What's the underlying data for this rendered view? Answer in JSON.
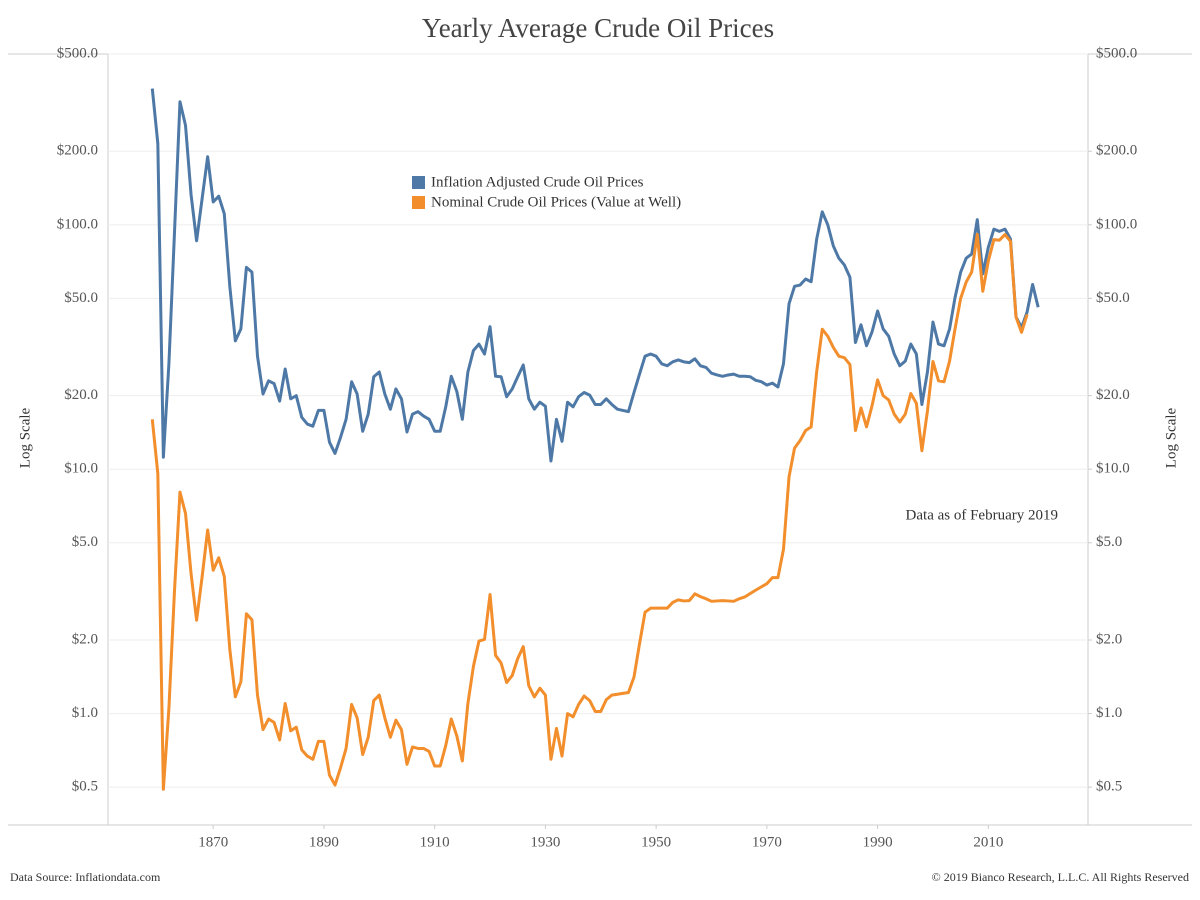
{
  "chart_data": {
    "type": "line",
    "title": "Yearly Average Crude Oil Prices",
    "y_label": "Log Scale",
    "y2_label": "Log Scale",
    "annotation": "Data as of February 2019",
    "source": "Data Source: Inflationdata.com",
    "copyright": "© 2019 Bianco Research, L.L.C. All Rights Reserved",
    "log_scale": true,
    "grid": true,
    "legend_position": "top",
    "xlim": [
      1851,
      2028
    ],
    "xticks": [
      1870,
      1890,
      1910,
      1930,
      1950,
      1970,
      1990,
      2010
    ],
    "ylim": [
      0.35,
      500
    ],
    "yticks": [
      {
        "value": 500,
        "label": "$500.0"
      },
      {
        "value": 200,
        "label": "$200.0"
      },
      {
        "value": 100,
        "label": "$100.0"
      },
      {
        "value": 50,
        "label": "$50.0"
      },
      {
        "value": 20,
        "label": "$20.0"
      },
      {
        "value": 10,
        "label": "$10.0"
      },
      {
        "value": 5,
        "label": "$5.0"
      },
      {
        "value": 2,
        "label": "$2.0"
      },
      {
        "value": 1,
        "label": "$1.0"
      },
      {
        "value": 0.5,
        "label": "$0.5"
      }
    ],
    "y2lim": [
      0.35,
      500
    ],
    "y2ticks": [
      {
        "value": 500,
        "label": "$500.0"
      },
      {
        "value": 200,
        "label": "$200.0"
      },
      {
        "value": 100,
        "label": "$100.0"
      },
      {
        "value": 50,
        "label": "$50.0"
      },
      {
        "value": 20,
        "label": "$20.0"
      },
      {
        "value": 10,
        "label": "$10.0"
      },
      {
        "value": 5,
        "label": "$5.0"
      },
      {
        "value": 2,
        "label": "$2.0"
      },
      {
        "value": 1,
        "label": "$1.0"
      },
      {
        "value": 0.5,
        "label": "$0.5"
      }
    ],
    "x": [
      1859,
      1860,
      1861,
      1862,
      1863,
      1864,
      1865,
      1866,
      1867,
      1868,
      1869,
      1870,
      1871,
      1872,
      1873,
      1874,
      1875,
      1876,
      1877,
      1878,
      1879,
      1880,
      1881,
      1882,
      1883,
      1884,
      1885,
      1886,
      1887,
      1888,
      1889,
      1890,
      1891,
      1892,
      1893,
      1894,
      1895,
      1896,
      1897,
      1898,
      1899,
      1900,
      1901,
      1902,
      1903,
      1904,
      1905,
      1906,
      1907,
      1908,
      1909,
      1910,
      1911,
      1912,
      1913,
      1914,
      1915,
      1916,
      1917,
      1918,
      1919,
      1920,
      1921,
      1922,
      1923,
      1924,
      1925,
      1926,
      1927,
      1928,
      1929,
      1930,
      1931,
      1932,
      1933,
      1934,
      1935,
      1936,
      1937,
      1938,
      1939,
      1940,
      1941,
      1942,
      1943,
      1944,
      1945,
      1946,
      1947,
      1948,
      1949,
      1950,
      1951,
      1952,
      1953,
      1954,
      1955,
      1956,
      1957,
      1958,
      1959,
      1960,
      1961,
      1962,
      1963,
      1964,
      1965,
      1966,
      1967,
      1968,
      1969,
      1970,
      1971,
      1972,
      1973,
      1974,
      1975,
      1976,
      1977,
      1978,
      1979,
      1980,
      1981,
      1982,
      1983,
      1984,
      1985,
      1986,
      1987,
      1988,
      1989,
      1990,
      1991,
      1992,
      1993,
      1994,
      1995,
      1996,
      1997,
      1998,
      1999,
      2000,
      2001,
      2002,
      2003,
      2004,
      2005,
      2006,
      2007,
      2008,
      2009,
      2010,
      2011,
      2012,
      2013,
      2014,
      2015,
      2016,
      2017,
      2018,
      2019
    ],
    "series": [
      {
        "name": "Inflation Adjusted Crude Oil Prices",
        "color": "#4e79a7",
        "values": [
          361,
          215,
          11.2,
          27,
          92,
          319,
          255,
          133,
          86,
          128,
          190,
          124,
          131,
          111,
          56,
          33.5,
          37.5,
          67,
          64,
          29,
          20.3,
          23,
          22.4,
          19,
          25.7,
          19.4,
          20,
          16.3,
          15.3,
          15,
          17.4,
          17.4,
          12.9,
          11.6,
          13.5,
          16,
          22.8,
          20.3,
          14.3,
          16.8,
          23.9,
          25,
          20.3,
          17.6,
          21.3,
          19.4,
          14.2,
          16.8,
          17.2,
          16.5,
          16,
          14.3,
          14.3,
          18,
          24,
          20.8,
          16,
          25,
          30.6,
          32.5,
          29.6,
          38.3,
          24,
          23.9,
          19.8,
          21.3,
          23.9,
          26.7,
          19.4,
          17.6,
          18.8,
          18.1,
          10.8,
          16,
          13,
          18.8,
          18,
          19.8,
          20.6,
          20.1,
          18.4,
          18.4,
          19.4,
          18.4,
          17.6,
          17.4,
          17.2,
          20.6,
          24.5,
          29,
          29.6,
          29,
          27,
          26.5,
          27.5,
          28,
          27.5,
          27.3,
          28.3,
          26.5,
          26.1,
          24.7,
          24.3,
          24,
          24.3,
          24.5,
          24,
          24,
          23.9,
          23.1,
          22.8,
          22.1,
          22.5,
          21.7,
          27,
          47.5,
          56,
          56.7,
          60,
          58.5,
          87.5,
          113,
          100,
          82,
          73,
          68.5,
          61,
          33,
          39,
          32,
          36.5,
          44.4,
          37.5,
          35,
          29.6,
          26.5,
          27.7,
          32.5,
          29.6,
          18.4,
          25,
          40,
          32.5,
          32,
          37.5,
          50.6,
          64,
          73,
          76,
          105,
          63,
          81,
          96,
          94,
          96,
          87.5,
          42,
          38,
          44,
          57,
          46
        ]
      },
      {
        "name": "Nominal Crude Oil Prices (Value at Well)",
        "color": "#f28e2b",
        "values": [
          16,
          9.59,
          0.49,
          1.05,
          3.15,
          8.06,
          6.59,
          3.74,
          2.41,
          3.63,
          5.64,
          3.86,
          4.34,
          3.64,
          1.83,
          1.17,
          1.35,
          2.56,
          2.42,
          1.19,
          0.86,
          0.95,
          0.92,
          0.78,
          1.1,
          0.85,
          0.88,
          0.71,
          0.67,
          0.65,
          0.77,
          0.77,
          0.56,
          0.51,
          0.6,
          0.72,
          1.09,
          0.96,
          0.68,
          0.8,
          1.13,
          1.19,
          0.96,
          0.8,
          0.94,
          0.86,
          0.62,
          0.73,
          0.72,
          0.72,
          0.7,
          0.61,
          0.61,
          0.74,
          0.95,
          0.81,
          0.64,
          1.1,
          1.56,
          1.98,
          2.01,
          3.07,
          1.73,
          1.61,
          1.34,
          1.43,
          1.68,
          1.88,
          1.3,
          1.17,
          1.27,
          1.19,
          0.65,
          0.87,
          0.67,
          1,
          0.97,
          1.09,
          1.18,
          1.13,
          1.02,
          1.02,
          1.14,
          1.19,
          1.2,
          1.21,
          1.22,
          1.41,
          1.93,
          2.6,
          2.7,
          2.7,
          2.7,
          2.7,
          2.85,
          2.92,
          2.89,
          2.9,
          3.09,
          3.01,
          2.95,
          2.88,
          2.89,
          2.9,
          2.89,
          2.88,
          2.95,
          3.0,
          3.1,
          3.2,
          3.3,
          3.4,
          3.6,
          3.6,
          4.7,
          9.3,
          12.2,
          13.1,
          14.4,
          14.9,
          25.1,
          37.4,
          35,
          31.5,
          29,
          28.6,
          26.8,
          14.4,
          17.8,
          14.9,
          18.2,
          23.2,
          20,
          19.2,
          16.8,
          15.6,
          16.8,
          20.4,
          18.6,
          11.9,
          17.3,
          27.6,
          23,
          22.8,
          27.7,
          37.7,
          50,
          58.3,
          64.2,
          91.5,
          53.5,
          71.2,
          87,
          86.5,
          91.2,
          85.6,
          41.9,
          36.3,
          43,
          null,
          null
        ]
      }
    ]
  }
}
